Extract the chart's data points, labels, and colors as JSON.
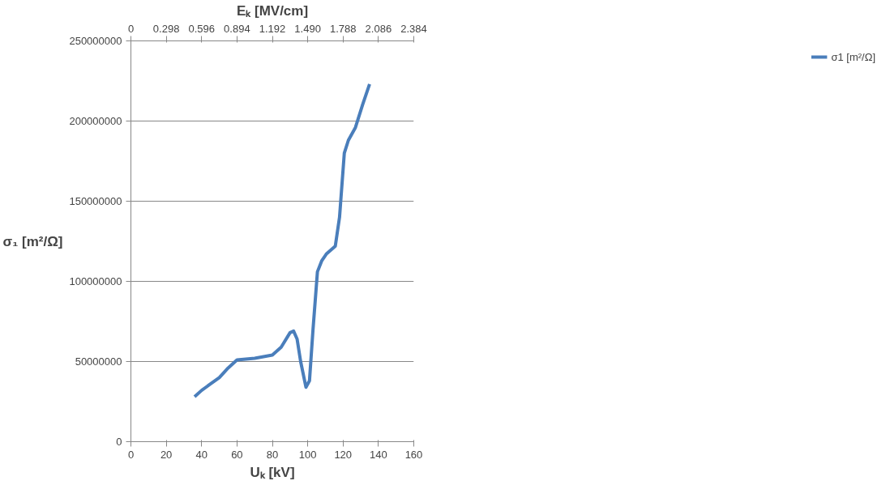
{
  "chart_data": {
    "type": "line",
    "xlabel": "Uₖ [kV]",
    "ylabel": "σ₁ [m²/Ω]",
    "x2label": "Eₖ [MV/cm]",
    "x": [
      36,
      40,
      45,
      50,
      55,
      60,
      70,
      80,
      85,
      90,
      92,
      94,
      96,
      99,
      101,
      103,
      105.5,
      108,
      110.5,
      115.6,
      118,
      120.7,
      123,
      127,
      131,
      135
    ],
    "series": [
      {
        "name": "σ1 [m²/Ω]",
        "color": "#4a7ebb",
        "values": [
          28000000,
          32000000,
          36000000,
          40000000,
          46000000,
          51000000,
          52000000,
          54000000,
          59000000,
          68000000,
          69000000,
          64000000,
          50000000,
          34000000,
          38000000,
          70000000,
          106000000,
          113000000,
          117000000,
          122000000,
          140000000,
          180000000,
          188000000,
          196000000,
          210000000,
          223000000
        ]
      }
    ],
    "xlim": [
      0,
      160
    ],
    "xticks": [
      0,
      20,
      40,
      60,
      80,
      100,
      120,
      140,
      160
    ],
    "ylim": [
      0,
      250000000
    ],
    "yticks": [
      0,
      50000000,
      100000000,
      150000000,
      200000000,
      250000000
    ],
    "x2lim": [
      0,
      2.384
    ],
    "x2ticks": [
      0,
      0.298,
      0.596,
      0.894,
      1.192,
      {
        "value": 1.49,
        "label": "1.490"
      },
      1.788,
      2.086,
      2.384
    ],
    "grid": "y",
    "legend": "right",
    "marker": "none",
    "line_style": "solid"
  }
}
